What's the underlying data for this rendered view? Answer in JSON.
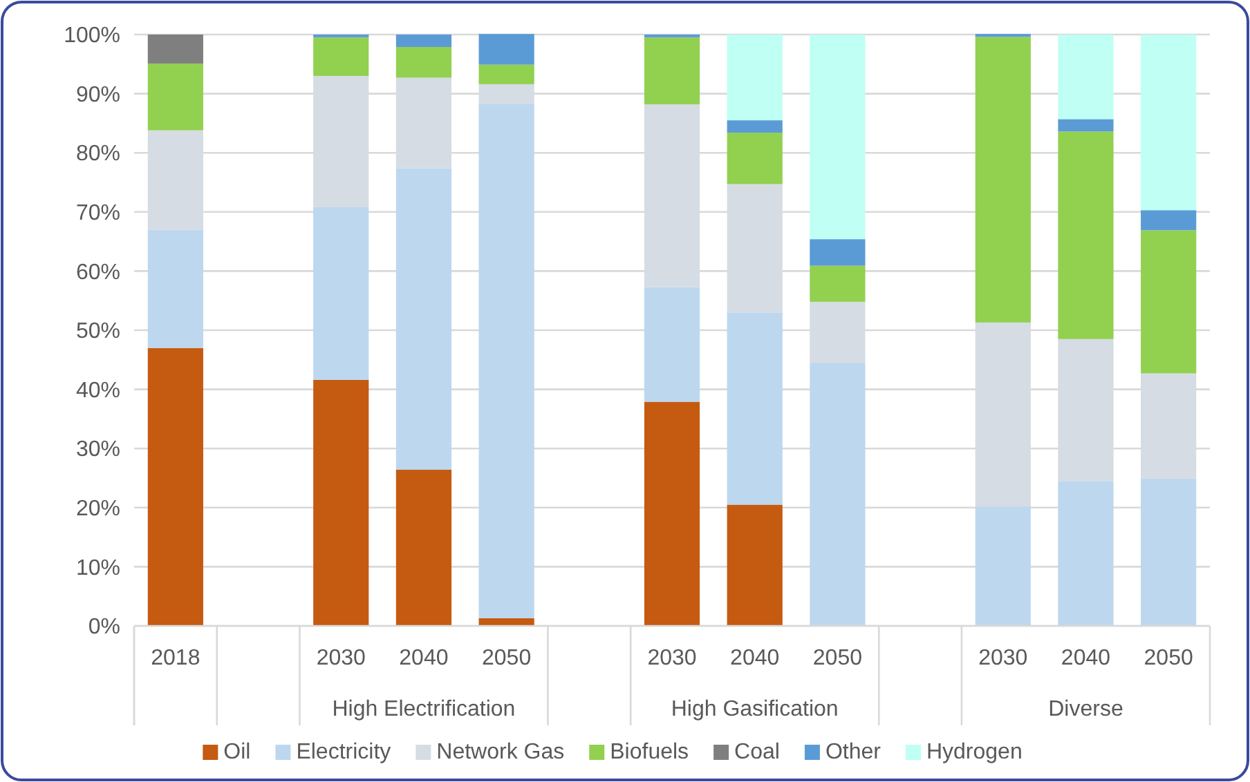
{
  "chart_data": {
    "type": "bar",
    "stacked": true,
    "categories": [
      "2018",
      null,
      "2030",
      "2040",
      "2050",
      null,
      "2030",
      "2040",
      "2050",
      null,
      "2030",
      "2040",
      "2050"
    ],
    "annotations": [
      "High Electrification",
      "High Gasification",
      "Diverse"
    ],
    "series": [
      {
        "name": "Oil",
        "color": "#c55a11",
        "values": [
          47,
          null,
          41.6,
          26.4,
          1.3,
          null,
          37.9,
          20.5,
          null,
          null,
          null,
          null,
          null
        ]
      },
      {
        "name": "Electricity",
        "color": "#bdd7ee",
        "values": [
          20,
          null,
          29.2,
          51,
          87,
          null,
          19.4,
          32.5,
          44.5,
          null,
          20.2,
          24.5,
          24.9
        ]
      },
      {
        "name": "Network Gas",
        "color": "#d6dce4",
        "values": [
          16.8,
          null,
          22.2,
          15.3,
          3.3,
          null,
          30.9,
          21.7,
          10.3,
          null,
          31.1,
          24,
          17.8
        ]
      },
      {
        "name": "Biofuels",
        "color": "#92d050",
        "values": [
          11.3,
          null,
          6.5,
          5.2,
          3.3,
          null,
          11.3,
          8.7,
          6.1,
          null,
          48.3,
          35.1,
          24.2
        ]
      },
      {
        "name": "Coal",
        "color": "#7f7f7f",
        "values": [
          4.9,
          null,
          null,
          null,
          null,
          null,
          null,
          null,
          null,
          null,
          null,
          null,
          null
        ]
      },
      {
        "name": "Other",
        "color": "#5b9bd5",
        "values": [
          null,
          null,
          0.5,
          2.1,
          5.2,
          null,
          0.5,
          2.1,
          4.5,
          null,
          0.5,
          2.1,
          3.4
        ]
      },
      {
        "name": "Hydrogen",
        "color": "#bffff4",
        "values": [
          null,
          null,
          null,
          null,
          null,
          null,
          null,
          14.5,
          34.6,
          null,
          null,
          14.3,
          29.7
        ]
      }
    ],
    "ylim": [
      0,
      100
    ],
    "yticks": [
      {
        "value": 0,
        "label": "0%"
      },
      {
        "value": 10,
        "label": "10%"
      },
      {
        "value": 20,
        "label": "20%"
      },
      {
        "value": 30,
        "label": "30%"
      },
      {
        "value": 40,
        "label": "40%"
      },
      {
        "value": 50,
        "label": "50%"
      },
      {
        "value": 60,
        "label": "60%"
      },
      {
        "value": 70,
        "label": "70%"
      },
      {
        "value": 80,
        "label": "80%"
      },
      {
        "value": 90,
        "label": "90%"
      },
      {
        "value": 100,
        "label": "100%"
      }
    ],
    "grid": "y",
    "legend": "bottom"
  }
}
